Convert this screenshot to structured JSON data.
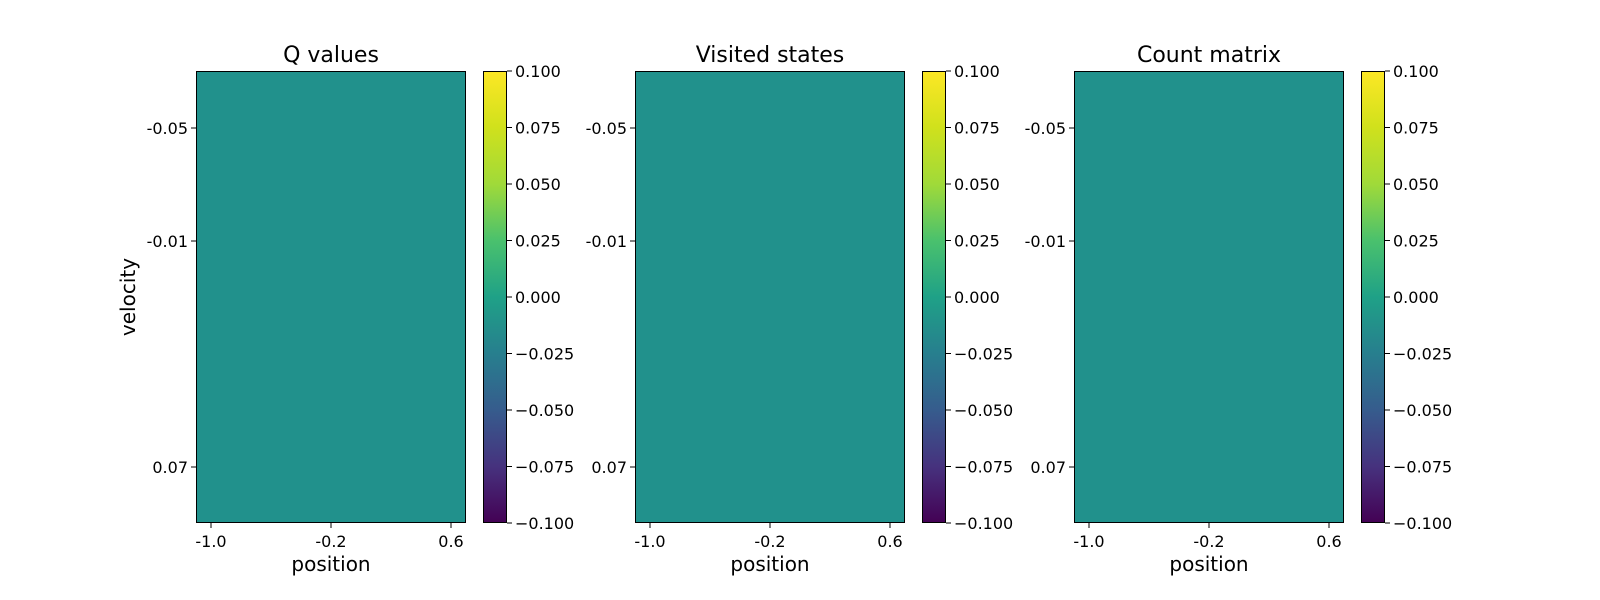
{
  "chart_data": [
    {
      "type": "heatmap",
      "title": "Q values",
      "xlabel": "position",
      "ylabel": "velocity",
      "x_ticks": [
        "-1.0",
        "-0.2",
        "0.6"
      ],
      "y_ticks": [
        "-0.05",
        "-0.01",
        "0.07"
      ],
      "values": [
        [
          0
        ]
      ],
      "colorbar": {
        "range": [
          -0.1,
          0.1
        ],
        "ticks": [
          "−0.100",
          "−0.075",
          "−0.050",
          "−0.025",
          "0.000",
          "0.025",
          "0.050",
          "0.075",
          "0.100"
        ],
        "colormap": "viridis"
      },
      "fill_color": "#21918c"
    },
    {
      "type": "heatmap",
      "title": "Visited states",
      "xlabel": "position",
      "ylabel": "",
      "x_ticks": [
        "-1.0",
        "-0.2",
        "0.6"
      ],
      "y_ticks": [
        "-0.05",
        "-0.01",
        "0.07"
      ],
      "values": [
        [
          0
        ]
      ],
      "colorbar": {
        "range": [
          -0.1,
          0.1
        ],
        "ticks": [
          "−0.100",
          "−0.075",
          "−0.050",
          "−0.025",
          "0.000",
          "0.025",
          "0.050",
          "0.075",
          "0.100"
        ],
        "colormap": "viridis"
      },
      "fill_color": "#21918c"
    },
    {
      "type": "heatmap",
      "title": "Count matrix",
      "xlabel": "position",
      "ylabel": "",
      "x_ticks": [
        "-1.0",
        "-0.2",
        "0.6"
      ],
      "y_ticks": [
        "-0.05",
        "-0.01",
        "0.07"
      ],
      "values": [
        [
          0
        ]
      ],
      "colorbar": {
        "range": [
          -0.1,
          0.1
        ],
        "ticks": [
          "−0.100",
          "−0.075",
          "−0.050",
          "−0.025",
          "0.000",
          "0.025",
          "0.050",
          "0.075",
          "0.100"
        ],
        "colormap": "viridis"
      },
      "fill_color": "#21918c"
    }
  ]
}
